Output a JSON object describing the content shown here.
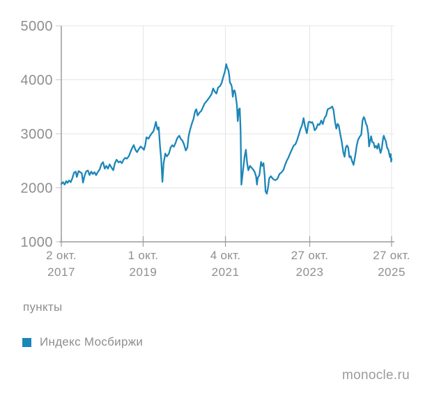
{
  "colors": {
    "line": "#1c86b8",
    "grid": "#e4e4e4",
    "axis": "#9b9b9b",
    "tick": "#c9c9c9",
    "text": "#8e8e8e",
    "brand_text": "#9b9b9b"
  },
  "unit_label": "пункты",
  "legend": {
    "items": [
      {
        "label": "Индекс Мосбиржи",
        "color": "#1c86b8"
      }
    ]
  },
  "footer": {
    "brand": "monocle.ru"
  },
  "chart_data": {
    "type": "line",
    "title": "",
    "xlabel": "",
    "ylabel": "пункты",
    "grid": true,
    "legend_position": "bottom-left",
    "x_range": [
      2017.75,
      2025.82
    ],
    "y_range": [
      1000,
      5000
    ],
    "y_ticks": [
      1000,
      2000,
      3000,
      4000,
      5000
    ],
    "x_ticks": [
      {
        "t": 2017.75,
        "line1": "2 окт.",
        "line2": "2017"
      },
      {
        "t": 2019.75,
        "line1": "1 окт.",
        "line2": "2019"
      },
      {
        "t": 2021.76,
        "line1": "4 окт.",
        "line2": "2021"
      },
      {
        "t": 2023.82,
        "line1": "27 окт.",
        "line2": "2023"
      },
      {
        "t": 2025.82,
        "line1": "27 окт.",
        "line2": "2025"
      }
    ],
    "series": [
      {
        "name": "Индекс Мосбиржи",
        "color": "#1c86b8",
        "points": [
          [
            2017.75,
            2071
          ],
          [
            2017.79,
            2105
          ],
          [
            2017.83,
            2060
          ],
          [
            2017.87,
            2125
          ],
          [
            2017.9,
            2090
          ],
          [
            2017.94,
            2135
          ],
          [
            2017.98,
            2105
          ],
          [
            2018.02,
            2180
          ],
          [
            2018.06,
            2280
          ],
          [
            2018.1,
            2300
          ],
          [
            2018.13,
            2200
          ],
          [
            2018.17,
            2310
          ],
          [
            2018.21,
            2290
          ],
          [
            2018.25,
            2270
          ],
          [
            2018.28,
            2095
          ],
          [
            2018.32,
            2230
          ],
          [
            2018.36,
            2305
          ],
          [
            2018.4,
            2320
          ],
          [
            2018.44,
            2235
          ],
          [
            2018.48,
            2300
          ],
          [
            2018.52,
            2255
          ],
          [
            2018.56,
            2290
          ],
          [
            2018.6,
            2235
          ],
          [
            2018.64,
            2290
          ],
          [
            2018.69,
            2345
          ],
          [
            2018.73,
            2440
          ],
          [
            2018.77,
            2475
          ],
          [
            2018.81,
            2355
          ],
          [
            2018.85,
            2405
          ],
          [
            2018.89,
            2355
          ],
          [
            2018.93,
            2435
          ],
          [
            2018.98,
            2370
          ],
          [
            2019.02,
            2325
          ],
          [
            2019.06,
            2455
          ],
          [
            2019.1,
            2520
          ],
          [
            2019.15,
            2470
          ],
          [
            2019.19,
            2490
          ],
          [
            2019.23,
            2455
          ],
          [
            2019.27,
            2520
          ],
          [
            2019.31,
            2555
          ],
          [
            2019.35,
            2540
          ],
          [
            2019.4,
            2585
          ],
          [
            2019.44,
            2665
          ],
          [
            2019.48,
            2735
          ],
          [
            2019.52,
            2790
          ],
          [
            2019.56,
            2705
          ],
          [
            2019.6,
            2660
          ],
          [
            2019.65,
            2725
          ],
          [
            2019.69,
            2765
          ],
          [
            2019.73,
            2735
          ],
          [
            2019.77,
            2705
          ],
          [
            2019.8,
            2790
          ],
          [
            2019.83,
            2935
          ],
          [
            2019.88,
            2910
          ],
          [
            2019.92,
            2965
          ],
          [
            2019.96,
            3010
          ],
          [
            2020.0,
            3045
          ],
          [
            2020.04,
            3150
          ],
          [
            2020.06,
            3220
          ],
          [
            2020.1,
            3080
          ],
          [
            2020.13,
            3120
          ],
          [
            2020.16,
            2780
          ],
          [
            2020.19,
            2540
          ],
          [
            2020.22,
            2110
          ],
          [
            2020.25,
            2450
          ],
          [
            2020.29,
            2635
          ],
          [
            2020.33,
            2580
          ],
          [
            2020.38,
            2635
          ],
          [
            2020.42,
            2745
          ],
          [
            2020.46,
            2790
          ],
          [
            2020.5,
            2760
          ],
          [
            2020.54,
            2830
          ],
          [
            2020.58,
            2915
          ],
          [
            2020.63,
            2965
          ],
          [
            2020.67,
            2905
          ],
          [
            2020.71,
            2870
          ],
          [
            2020.75,
            2800
          ],
          [
            2020.79,
            2690
          ],
          [
            2020.83,
            2745
          ],
          [
            2020.86,
            2960
          ],
          [
            2020.9,
            3085
          ],
          [
            2020.94,
            3190
          ],
          [
            2020.98,
            3275
          ],
          [
            2021.02,
            3420
          ],
          [
            2021.05,
            3455
          ],
          [
            2021.08,
            3340
          ],
          [
            2021.13,
            3395
          ],
          [
            2021.17,
            3425
          ],
          [
            2021.21,
            3490
          ],
          [
            2021.25,
            3560
          ],
          [
            2021.29,
            3595
          ],
          [
            2021.33,
            3635
          ],
          [
            2021.38,
            3685
          ],
          [
            2021.42,
            3735
          ],
          [
            2021.46,
            3840
          ],
          [
            2021.5,
            3780
          ],
          [
            2021.54,
            3745
          ],
          [
            2021.58,
            3855
          ],
          [
            2021.63,
            3885
          ],
          [
            2021.67,
            3945
          ],
          [
            2021.71,
            4060
          ],
          [
            2021.75,
            4160
          ],
          [
            2021.78,
            4290
          ],
          [
            2021.8,
            4230
          ],
          [
            2021.83,
            4185
          ],
          [
            2021.85,
            4105
          ],
          [
            2021.87,
            3945
          ],
          [
            2021.9,
            3915
          ],
          [
            2021.92,
            3855
          ],
          [
            2021.94,
            3685
          ],
          [
            2021.96,
            3795
          ],
          [
            2021.98,
            3805
          ],
          [
            2022.0,
            3760
          ],
          [
            2022.04,
            3535
          ],
          [
            2022.06,
            3235
          ],
          [
            2022.09,
            3455
          ],
          [
            2022.11,
            3470
          ],
          [
            2022.13,
            3060
          ],
          [
            2022.15,
            2058
          ],
          [
            2022.23,
            2580
          ],
          [
            2022.26,
            2705
          ],
          [
            2022.29,
            2455
          ],
          [
            2022.32,
            2325
          ],
          [
            2022.36,
            2405
          ],
          [
            2022.4,
            2370
          ],
          [
            2022.44,
            2335
          ],
          [
            2022.48,
            2285
          ],
          [
            2022.51,
            2205
          ],
          [
            2022.53,
            2060
          ],
          [
            2022.55,
            2185
          ],
          [
            2022.59,
            2235
          ],
          [
            2022.63,
            2480
          ],
          [
            2022.66,
            2405
          ],
          [
            2022.69,
            2455
          ],
          [
            2022.72,
            2215
          ],
          [
            2022.74,
            1935
          ],
          [
            2022.77,
            1890
          ],
          [
            2022.8,
            1995
          ],
          [
            2022.83,
            2175
          ],
          [
            2022.87,
            2215
          ],
          [
            2022.9,
            2185
          ],
          [
            2022.94,
            2155
          ],
          [
            2022.98,
            2140
          ],
          [
            2023.03,
            2165
          ],
          [
            2023.08,
            2255
          ],
          [
            2023.13,
            2285
          ],
          [
            2023.18,
            2335
          ],
          [
            2023.22,
            2430
          ],
          [
            2023.26,
            2505
          ],
          [
            2023.3,
            2560
          ],
          [
            2023.34,
            2635
          ],
          [
            2023.39,
            2720
          ],
          [
            2023.43,
            2785
          ],
          [
            2023.47,
            2805
          ],
          [
            2023.51,
            2880
          ],
          [
            2023.55,
            2975
          ],
          [
            2023.59,
            3080
          ],
          [
            2023.63,
            3155
          ],
          [
            2023.67,
            3290
          ],
          [
            2023.7,
            3155
          ],
          [
            2023.73,
            3065
          ],
          [
            2023.75,
            3010
          ],
          [
            2023.79,
            3215
          ],
          [
            2023.82,
            3225
          ],
          [
            2023.85,
            3205
          ],
          [
            2023.88,
            3215
          ],
          [
            2023.91,
            3165
          ],
          [
            2023.94,
            3065
          ],
          [
            2023.98,
            3100
          ],
          [
            2024.02,
            3180
          ],
          [
            2024.06,
            3165
          ],
          [
            2024.1,
            3245
          ],
          [
            2024.14,
            3180
          ],
          [
            2024.18,
            3290
          ],
          [
            2024.22,
            3335
          ],
          [
            2024.26,
            3455
          ],
          [
            2024.3,
            3470
          ],
          [
            2024.34,
            3485
          ],
          [
            2024.37,
            3505
          ],
          [
            2024.4,
            3445
          ],
          [
            2024.44,
            3215
          ],
          [
            2024.47,
            3095
          ],
          [
            2024.5,
            3185
          ],
          [
            2024.53,
            3155
          ],
          [
            2024.57,
            2975
          ],
          [
            2024.6,
            2865
          ],
          [
            2024.64,
            2655
          ],
          [
            2024.67,
            2575
          ],
          [
            2024.7,
            2745
          ],
          [
            2024.73,
            2785
          ],
          [
            2024.76,
            2745
          ],
          [
            2024.79,
            2565
          ],
          [
            2024.82,
            2585
          ],
          [
            2024.85,
            2505
          ],
          [
            2024.89,
            2425
          ],
          [
            2024.93,
            2585
          ],
          [
            2024.97,
            2790
          ],
          [
            2025.0,
            2885
          ],
          [
            2025.04,
            2945
          ],
          [
            2025.08,
            2985
          ],
          [
            2025.11,
            3245
          ],
          [
            2025.14,
            3310
          ],
          [
            2025.16,
            3285
          ],
          [
            2025.19,
            3195
          ],
          [
            2025.22,
            3145
          ],
          [
            2025.25,
            3005
          ],
          [
            2025.27,
            2765
          ],
          [
            2025.3,
            2885
          ],
          [
            2025.32,
            2955
          ],
          [
            2025.35,
            2845
          ],
          [
            2025.38,
            2835
          ],
          [
            2025.41,
            2745
          ],
          [
            2025.44,
            2775
          ],
          [
            2025.47,
            2725
          ],
          [
            2025.5,
            2815
          ],
          [
            2025.52,
            2745
          ],
          [
            2025.55,
            2645
          ],
          [
            2025.58,
            2725
          ],
          [
            2025.61,
            2905
          ],
          [
            2025.63,
            2965
          ],
          [
            2025.66,
            2895
          ],
          [
            2025.68,
            2865
          ],
          [
            2025.71,
            2745
          ],
          [
            2025.74,
            2705
          ],
          [
            2025.76,
            2635
          ],
          [
            2025.78,
            2565
          ],
          [
            2025.8,
            2625
          ],
          [
            2025.81,
            2485
          ],
          [
            2025.82,
            2540
          ]
        ]
      }
    ]
  }
}
